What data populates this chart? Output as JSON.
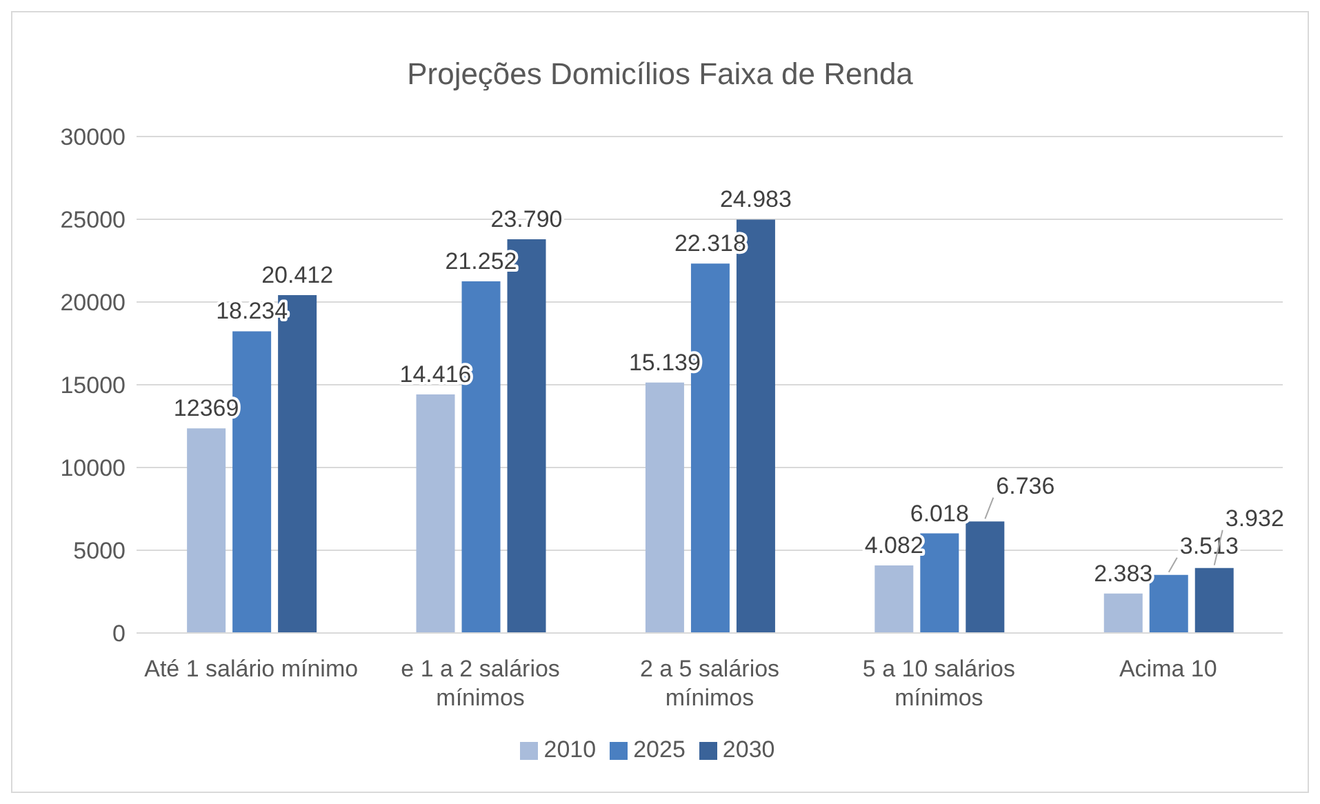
{
  "chart_data": {
    "type": "bar",
    "title": "Projeções Domicílios Faixa de Renda",
    "categories": [
      "Até 1 salário mínimo",
      "e 1 a 2 salários mínimos",
      "2 a 5 salários mínimos",
      "5 a 10 salários mínimos",
      "Acima 10"
    ],
    "series": [
      {
        "name": "2010",
        "color": "#a9bcdb",
        "values": [
          12369,
          14416,
          15139,
          4082,
          2383
        ],
        "value_labels": [
          "12369",
          "14.416",
          "15.139",
          "4.082",
          "2.383"
        ]
      },
      {
        "name": "2025",
        "color": "#4a7fc1",
        "values": [
          18234,
          21252,
          22318,
          6018,
          3513
        ],
        "value_labels": [
          "18.234",
          "21.252",
          "22.318",
          "6.018",
          "3.513"
        ]
      },
      {
        "name": "2030",
        "color": "#3a6399",
        "values": [
          20412,
          23790,
          24983,
          6736,
          3932
        ],
        "value_labels": [
          "20.412",
          "23.790",
          "24.983",
          "6.736",
          "3.932"
        ]
      }
    ],
    "ylim": [
      0,
      30000
    ],
    "yticks": [
      0,
      5000,
      10000,
      15000,
      20000,
      25000,
      30000
    ],
    "grid": "y",
    "legend": "bottom"
  }
}
